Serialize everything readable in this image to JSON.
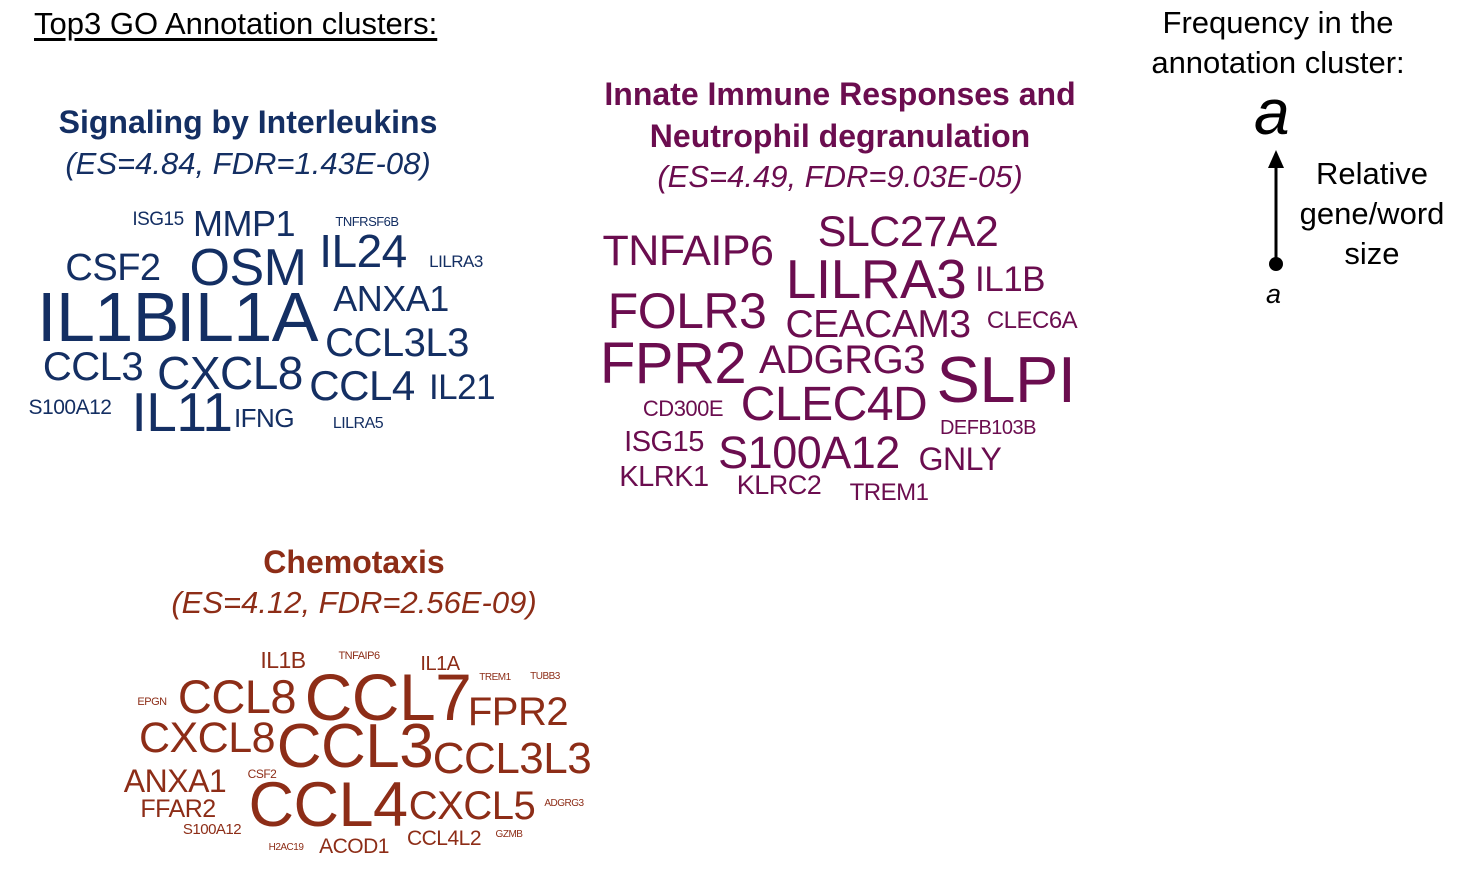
{
  "page_title": "Top3 GO Annotation clusters:",
  "clusters": [
    {
      "title": "Signaling by Interleukins",
      "stats": "(ES=4.84, FDR=1.43E-08)",
      "color": "#142f63",
      "words": [
        "ISG15",
        "MMP1",
        "TNFRSF6B",
        "CSF2",
        "OSM",
        "IL24",
        "LILRA3",
        "IL1B",
        "IL1A",
        "ANXA1",
        "CCL3L3",
        "CCL3",
        "CXCL8",
        "CCL4",
        "IL21",
        "S100A12",
        "IL11",
        "IFNG",
        "LILRA5"
      ]
    },
    {
      "title_line1": "Innate Immune Responses and",
      "title_line2": "Neutrophil degranulation",
      "stats": "(ES=4.49, FDR=9.03E-05)",
      "color": "#6b0d4f",
      "words": [
        "SLC27A2",
        "TNFAIP6",
        "LILRA3",
        "IL1B",
        "FOLR3",
        "CEACAM3",
        "CLEC6A",
        "FPR2",
        "ADGRG3",
        "SLPI",
        "CD300E",
        "CLEC4D",
        "DEFB103B",
        "ISG15",
        "S100A12",
        "GNLY",
        "KLRK1",
        "KLRC2",
        "TREM1"
      ]
    },
    {
      "title": "Chemotaxis",
      "stats": "(ES=4.12, FDR=2.56E-09)",
      "color": "#8d2d17",
      "words": [
        "IL1B",
        "TNFAIP6",
        "IL1A",
        "TREM1",
        "TUBB3",
        "EPGN",
        "CCL8",
        "CCL7",
        "FPR2",
        "CXCL8",
        "CCL3",
        "CCL3L3",
        "ANXA1",
        "CSF2",
        "CCL4",
        "CXCL5",
        "ADGRG3",
        "FFAR2",
        "S100A12",
        "H2AC19",
        "ACOD1",
        "CCL4L2",
        "GZMB"
      ]
    }
  ],
  "legend": {
    "title_line1": "Frequency in the",
    "title_line2": "annotation cluster:",
    "big_letter": "a",
    "small_letter": "a",
    "side_line1": "Relative",
    "side_line2": "gene/word",
    "side_line3": "size"
  }
}
